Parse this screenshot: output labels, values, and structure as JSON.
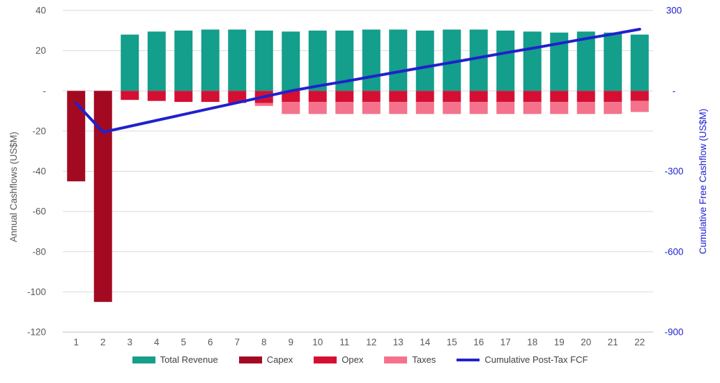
{
  "chart_data": {
    "type": "combo-stacked-bar-line",
    "categories": [
      1,
      2,
      3,
      4,
      5,
      6,
      7,
      8,
      9,
      10,
      11,
      12,
      13,
      14,
      15,
      16,
      17,
      18,
      19,
      20,
      21,
      22
    ],
    "series": [
      {
        "name": "Total Revenue",
        "type": "bar",
        "axis": "left",
        "color": "#149E8C",
        "values": [
          0,
          0,
          28,
          29.5,
          30,
          30.5,
          30.5,
          30,
          29.5,
          30,
          30,
          30.5,
          30.5,
          30,
          30.5,
          30.5,
          30,
          29.5,
          29,
          29.5,
          29,
          28
        ]
      },
      {
        "name": "Capex",
        "type": "bar",
        "axis": "left",
        "color": "#A30A21",
        "values": [
          -45,
          -105,
          0,
          0,
          0,
          0,
          0,
          0,
          0,
          0,
          0,
          0,
          0,
          0,
          0,
          0,
          0,
          0,
          0,
          0,
          0,
          0
        ]
      },
      {
        "name": "Opex",
        "type": "bar",
        "axis": "left",
        "color": "#D50F33",
        "values": [
          0,
          0,
          -4.5,
          -5,
          -5.5,
          -5.5,
          -6,
          -6,
          -5.5,
          -5.5,
          -5.5,
          -5.5,
          -5.5,
          -5.5,
          -5.5,
          -5.5,
          -5.5,
          -5.5,
          -5.5,
          -5.5,
          -5.5,
          -5
        ]
      },
      {
        "name": "Taxes",
        "type": "bar",
        "axis": "left",
        "color": "#F4728B",
        "values": [
          0,
          0,
          0,
          0,
          0,
          0,
          0,
          -1.5,
          -6,
          -6,
          -6,
          -6,
          -6,
          -6,
          -6,
          -6,
          -6,
          -6,
          -6,
          -6,
          -6,
          -5.5
        ]
      },
      {
        "name": "Cumulative Post-Tax FCF",
        "type": "line",
        "axis": "right",
        "color": "#2121CC",
        "values": [
          -46,
          -154,
          -132,
          -110,
          -88,
          -66,
          -44,
          -22,
          0,
          18,
          35,
          53,
          71,
          89,
          106,
          124,
          142,
          159,
          177,
          195,
          212,
          230
        ]
      }
    ],
    "left_axis": {
      "label": "Annual Cashflows (US$M)",
      "min": -120,
      "max": 40,
      "tick_step": 20,
      "tick_labels": [
        "40",
        "20",
        "-",
        "-20",
        "-40",
        "-60",
        "-80",
        "-100",
        "-120"
      ]
    },
    "right_axis": {
      "label": "Cumulative Free Cashflow (US$M)",
      "min": -900,
      "max": 300,
      "tick_step": 300,
      "tick_labels": [
        "300",
        "-",
        "-300",
        "-600",
        "-900"
      ]
    },
    "grid": true,
    "legend_position": "bottom"
  },
  "colors": {
    "background": "#FFFFFF",
    "grid_line": "#D9D9D9",
    "axis_line": "#BFBFBF",
    "left_tick_text": "#595959",
    "x_tick_text": "#595959",
    "right_tick_text": "#2021CE",
    "left_title_text": "#595959",
    "right_title_text": "#2021CE",
    "legend_text": "#3F3F3F"
  }
}
